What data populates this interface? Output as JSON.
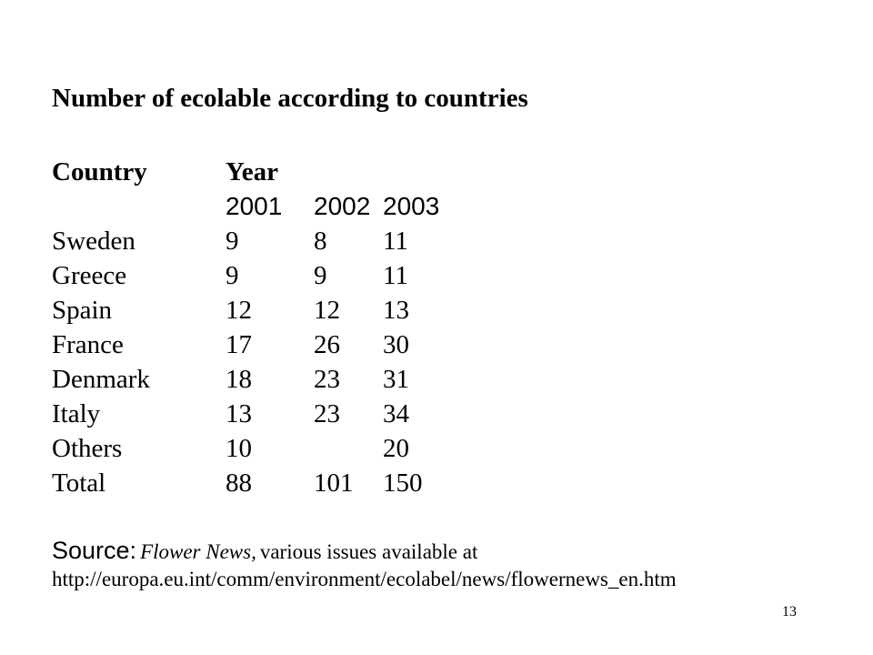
{
  "slide": {
    "title": "Number of ecolable according to countries",
    "page_number": "13"
  },
  "table": {
    "header": {
      "country_label": "Country",
      "year_label": "Year",
      "years": [
        "2001",
        "2002",
        "2003"
      ]
    },
    "rows": [
      {
        "country": "Sweden",
        "y2001": "9",
        "y2002": "8",
        "y2003": "11"
      },
      {
        "country": "Greece",
        "y2001": "9",
        "y2002": "9",
        "y2003": "11"
      },
      {
        "country": "Spain",
        "y2001": "12",
        "y2002": "12",
        "y2003": "13"
      },
      {
        "country": "France",
        "y2001": "17",
        "y2002": "26",
        "y2003": "30"
      },
      {
        "country": "Denmark",
        "y2001": "18",
        "y2002": "23",
        "y2003": "31"
      },
      {
        "country": "Italy",
        "y2001": "13",
        "y2002": "23",
        "y2003": "34"
      },
      {
        "country": "Others",
        "y2001": "10",
        "y2002": "",
        "y2003": "20"
      },
      {
        "country": "Total",
        "y2001": "88",
        "y2002": "101",
        "y2003": "150"
      }
    ]
  },
  "source": {
    "label": "Source:",
    "publication": "Flower News,",
    "text": "various issues available at",
    "url": "http://europa.eu.int/comm/environment/ecolabel/news/flowernews_en.htm"
  }
}
